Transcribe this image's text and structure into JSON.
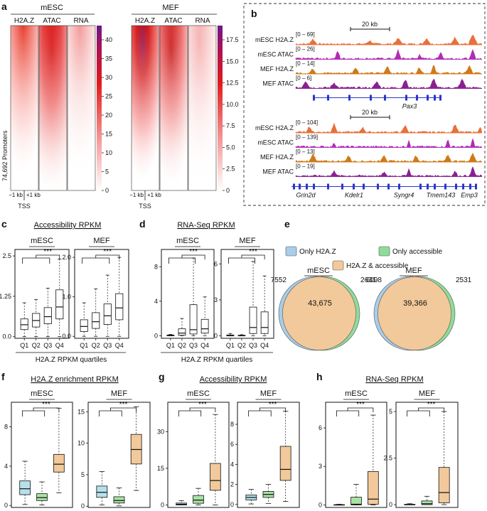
{
  "panel_labels": {
    "a": "a",
    "b": "b",
    "c": "c",
    "d": "d",
    "e": "e",
    "f": "f",
    "g": "g",
    "h": "h"
  },
  "colors": {
    "h2az": "#e8703a",
    "atac": "#b22bb5",
    "mef_h2az": "#cf7a18",
    "mef_atac": "#8a2090",
    "gene": "#2b35c8",
    "venn_h2az": "#a9cdea",
    "venn_both": "#f2c99a",
    "venn_atac": "#8fdc9a",
    "box_h2az": "#b6e0ec",
    "box_atac": "#a8e3a3",
    "box_both": "#f2c99a"
  },
  "panel_a": {
    "mesc": {
      "title": "mESC",
      "columns": [
        "H2A.Z",
        "ATAC",
        "RNA"
      ],
      "colorbar_ticks": [
        "40",
        "35",
        "30",
        "25",
        "20",
        "15",
        "10",
        "5",
        "0"
      ]
    },
    "mef": {
      "title": "MEF",
      "columns": [
        "H2A.Z",
        "ATAC",
        "RNA"
      ],
      "colorbar_ticks": [
        "17.5",
        "15.0",
        "12.5",
        "10.0",
        "7.5",
        "5.0",
        "2.5",
        "0"
      ]
    },
    "row_label": "74,692 Promoters",
    "x_ticks": [
      "−1 kb",
      "+1 kb"
    ],
    "x_label": "TSS"
  },
  "panel_b": {
    "locus1": {
      "scale": "20 kb",
      "tracks": [
        {
          "name": "mESC H2A.Z",
          "range": "[0 – 69]"
        },
        {
          "name": "mESC ATAC",
          "range": "[0 – 26]"
        },
        {
          "name": "MEF H2A.Z",
          "range": "[0 – 14]"
        },
        {
          "name": "MEF ATAC",
          "range": "[0 – 6]"
        }
      ],
      "genes": [
        "Pax3"
      ]
    },
    "locus2": {
      "scale": "20 kb",
      "tracks": [
        {
          "name": "mESC H2A.Z",
          "range": "[0 – 104]"
        },
        {
          "name": "mESC ATAC",
          "range": "[0 – 139]"
        },
        {
          "name": "MEF H2A.Z",
          "range": "[0 – 13]"
        },
        {
          "name": "MEF ATAC",
          "range": "[0 – 19]"
        }
      ],
      "genes": [
        "Grin2d",
        "Kdelr1",
        "Syngr4",
        "Tmem143",
        "Emp3"
      ]
    }
  },
  "chart_data": [
    {
      "id": "c",
      "type": "box",
      "title": "Accessibility RPKM",
      "xlabel": "H2A.Z RPKM quartiles",
      "significance": "***",
      "subplots": [
        {
          "name": "mESC",
          "categories": [
            "Q1",
            "Q2",
            "Q3",
            "Q4"
          ],
          "ylim": [
            -0.05,
            2.7
          ],
          "yticks": [
            "0.0",
            "1.25",
            "2.5"
          ],
          "ytick_values": [
            0,
            1.25,
            2.5
          ],
          "boxes": [
            {
              "min": 0,
              "q1": 0.22,
              "median": 0.37,
              "q3": 0.55,
              "max": 1.05
            },
            {
              "min": 0,
              "q1": 0.3,
              "median": 0.5,
              "q3": 0.72,
              "max": 1.15
            },
            {
              "min": 0,
              "q1": 0.4,
              "median": 0.62,
              "q3": 0.9,
              "max": 1.5
            },
            {
              "min": 0,
              "q1": 0.55,
              "median": 0.92,
              "q3": 1.45,
              "max": 2.4
            }
          ]
        },
        {
          "name": "MEF",
          "categories": [
            "Q1",
            "Q2",
            "Q3",
            "Q4"
          ],
          "ylim": [
            -0.05,
            2.2
          ],
          "yticks": [
            "0.0",
            "1.0",
            "2.0"
          ],
          "ytick_values": [
            0,
            1,
            2
          ],
          "boxes": [
            {
              "min": 0,
              "q1": 0.12,
              "median": 0.25,
              "q3": 0.42,
              "max": 0.85
            },
            {
              "min": 0,
              "q1": 0.2,
              "median": 0.37,
              "q3": 0.6,
              "max": 1.2
            },
            {
              "min": 0,
              "q1": 0.3,
              "median": 0.52,
              "q3": 0.82,
              "max": 1.55
            },
            {
              "min": 0,
              "q1": 0.42,
              "median": 0.72,
              "q3": 1.08,
              "max": 2.0
            }
          ]
        }
      ]
    },
    {
      "id": "d",
      "type": "box",
      "title": "RNA-Seq RPKM",
      "xlabel": "H2A.Z RPKM quartiles",
      "significance": "***",
      "subplots": [
        {
          "name": "mESC",
          "categories": [
            "Q1",
            "Q2",
            "Q3",
            "Q4"
          ],
          "ylim": [
            -0.3,
            10
          ],
          "yticks": [
            "0",
            "4",
            "8"
          ],
          "ytick_values": [
            0,
            4,
            8
          ],
          "boxes": [
            {
              "min": 0,
              "q1": 0,
              "median": 0.02,
              "q3": 0.08,
              "max": 0.15
            },
            {
              "min": 0,
              "q1": 0.05,
              "median": 0.3,
              "q3": 0.8,
              "max": 2.0
            },
            {
              "min": 0,
              "q1": 0.2,
              "median": 0.7,
              "q3": 3.6,
              "max": 9.0
            },
            {
              "min": 0,
              "q1": 0.3,
              "median": 0.8,
              "q3": 1.9,
              "max": 4.5
            }
          ]
        },
        {
          "name": "MEF",
          "categories": [
            "Q1",
            "Q2",
            "Q3",
            "Q4"
          ],
          "ylim": [
            -0.2,
            7.2
          ],
          "yticks": [
            "0",
            "3",
            "6"
          ],
          "ytick_values": [
            0,
            3,
            6
          ],
          "boxes": [
            {
              "min": 0,
              "q1": 0,
              "median": 0.02,
              "q3": 0.08,
              "max": 0.2
            },
            {
              "min": 0,
              "q1": 0,
              "median": 0.02,
              "q3": 0.05,
              "max": 0.1
            },
            {
              "min": 0,
              "q1": 0.2,
              "median": 0.7,
              "q3": 2.4,
              "max": 6.2
            },
            {
              "min": 0,
              "q1": 0.2,
              "median": 0.7,
              "q3": 2.0,
              "max": 5.0
            }
          ]
        }
      ]
    },
    {
      "id": "e",
      "type": "venn",
      "legend": [
        "Only H2A.Z",
        "Only accessible",
        "H2A.Z & accessible"
      ],
      "diagrams": [
        {
          "name": "mESC",
          "only_h2az": "7552",
          "only_accessible": "2631",
          "both": "43,675"
        },
        {
          "name": "MEF",
          "only_h2az": "6098",
          "only_accessible": "2531",
          "both": "39,366"
        }
      ]
    },
    {
      "id": "f",
      "type": "box",
      "title": "H2A.Z enrichment RPKM",
      "significance": "***",
      "subplots": [
        {
          "name": "mESC",
          "ylim": [
            -0.2,
            10.5
          ],
          "yticks": [
            "0",
            "4",
            "8"
          ],
          "ytick_values": [
            0,
            4,
            8
          ],
          "boxes": [
            {
              "min": 0.1,
              "q1": 1.1,
              "median": 1.7,
              "q3": 2.5,
              "max": 4.5,
              "fill": "box_h2az"
            },
            {
              "min": 0.05,
              "q1": 0.5,
              "median": 0.8,
              "q3": 1.2,
              "max": 2.4,
              "fill": "box_atac"
            },
            {
              "min": 1.3,
              "q1": 3.4,
              "median": 4.2,
              "q3": 5.2,
              "max": 9.9,
              "fill": "box_both"
            }
          ]
        },
        {
          "name": "MEF",
          "ylim": [
            -0.2,
            16.5
          ],
          "yticks": [
            "0",
            "5",
            "10",
            "15"
          ],
          "ytick_values": [
            0,
            5,
            10,
            15
          ],
          "boxes": [
            {
              "min": 0.2,
              "q1": 1.4,
              "median": 2.2,
              "q3": 3.2,
              "max": 5.5,
              "fill": "box_h2az"
            },
            {
              "min": 0.05,
              "q1": 0.5,
              "median": 0.9,
              "q3": 1.5,
              "max": 2.9,
              "fill": "box_atac"
            },
            {
              "min": 2.5,
              "q1": 6.7,
              "median": 9.0,
              "q3": 11.4,
              "max": 15.8,
              "fill": "box_both"
            }
          ]
        }
      ]
    },
    {
      "id": "g",
      "type": "box",
      "title": "Accessibility RPKM",
      "significance": "***",
      "subplots": [
        {
          "name": "mESC",
          "ylim": [
            -1,
            42
          ],
          "yticks": [
            "0",
            "15",
            "30"
          ],
          "ytick_values": [
            0,
            15,
            30
          ],
          "boxes": [
            {
              "min": 0,
              "q1": 0,
              "median": 0.3,
              "q3": 0.8,
              "max": 1.8,
              "fill": "box_h2az"
            },
            {
              "min": 0,
              "q1": 0.7,
              "median": 2.0,
              "q3": 3.9,
              "max": 6.8,
              "fill": "box_atac"
            },
            {
              "min": 0,
              "q1": 6.0,
              "median": 10.0,
              "q3": 17.0,
              "max": 37.0,
              "fill": "box_both"
            }
          ]
        },
        {
          "name": "MEF",
          "ylim": [
            -0.3,
            10.2
          ],
          "yticks": [
            "0",
            "2",
            "4",
            "6",
            "8"
          ],
          "ytick_values": [
            0,
            2,
            4,
            6,
            8
          ],
          "boxes": [
            {
              "min": 0.05,
              "q1": 0.45,
              "median": 0.7,
              "q3": 0.95,
              "max": 1.5,
              "fill": "box_h2az"
            },
            {
              "min": 0.1,
              "q1": 0.7,
              "median": 1.0,
              "q3": 1.3,
              "max": 2.0,
              "fill": "box_atac"
            },
            {
              "min": 0.3,
              "q1": 2.4,
              "median": 3.5,
              "q3": 5.8,
              "max": 9.3,
              "fill": "box_both"
            }
          ]
        }
      ]
    },
    {
      "id": "h",
      "type": "box",
      "title": "RNA-Seq RPKM",
      "significance": "***",
      "subplots": [
        {
          "name": "mESC",
          "ylim": [
            -0.2,
            8
          ],
          "yticks": [
            "0",
            "3",
            "6"
          ],
          "ytick_values": [
            0,
            3,
            6
          ],
          "boxes": [
            {
              "min": 0,
              "q1": 0,
              "median": 0,
              "q3": 0.02,
              "max": 0.05,
              "fill": "box_h2az"
            },
            {
              "min": 0,
              "q1": 0,
              "median": 0.05,
              "q3": 0.6,
              "max": 1.6,
              "fill": "box_atac"
            },
            {
              "min": 0,
              "q1": 0.05,
              "median": 0.45,
              "q3": 2.6,
              "max": 7.0,
              "fill": "box_both"
            }
          ]
        },
        {
          "name": "MEF",
          "ylim": [
            -0.15,
            5.5
          ],
          "yticks": [
            "0",
            "2.5",
            "5"
          ],
          "ytick_values": [
            0,
            2.5,
            5
          ],
          "boxes": [
            {
              "min": 0,
              "q1": 0,
              "median": 0,
              "q3": 0.02,
              "max": 0.05,
              "fill": "box_h2az"
            },
            {
              "min": 0,
              "q1": 0,
              "median": 0.05,
              "q3": 0.2,
              "max": 0.45,
              "fill": "box_atac"
            },
            {
              "min": 0,
              "q1": 0.1,
              "median": 0.65,
              "q3": 2.0,
              "max": 5.0,
              "fill": "box_both"
            }
          ]
        }
      ]
    }
  ]
}
